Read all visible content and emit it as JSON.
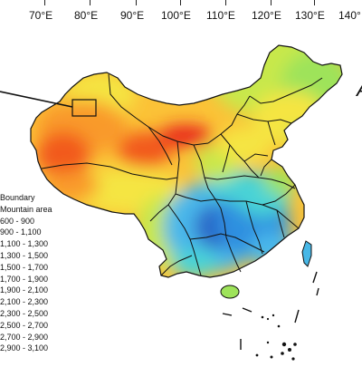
{
  "longitude_labels": [
    "70°E",
    "80°E",
    "90°E",
    "100°E",
    "110°E",
    "120°E",
    "130°E",
    "140°"
  ],
  "legend": {
    "title_lines": [
      "Boundary",
      "Mountain area"
    ],
    "classes": [
      "600 - 900",
      "900 - 1,100",
      "1,100 - 1,300",
      "1,300 - 1,500",
      "1,500 - 1,700",
      "1,700 - 1,900",
      "1,900 - 2,100",
      "2,100 - 2,300",
      "2,300 - 2,500",
      "2,500 - 2,700",
      "2,700 - 2,900",
      "2,900 - 3,100"
    ]
  },
  "colors": {
    "red": "#e8231c",
    "orange_red": "#f25a1c",
    "orange": "#f99a2a",
    "yellow_orange": "#fbc237",
    "yellow": "#f5e542",
    "yellow_green": "#c8e84b",
    "light_green": "#9ee35a",
    "cyan": "#49d3d6",
    "light_blue": "#48b7ea",
    "blue": "#2e8fe0",
    "deep_blue": "#2a66c7",
    "boundary": "#111111"
  },
  "right_edge_glyph": "A"
}
